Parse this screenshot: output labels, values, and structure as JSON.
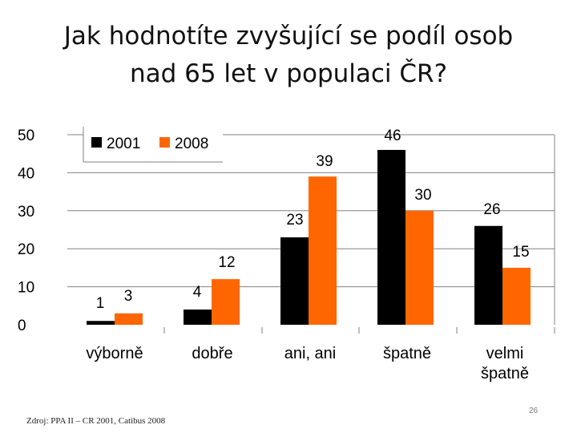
{
  "slide": {
    "title_line1": "Jak hodnotíte zvyšující se podíl osob",
    "title_line2": "nad 65 let v populaci ČR?",
    "source": "Zdroj: PPA II – CR 2001, Catibus 2008",
    "page_number": "26"
  },
  "colors": {
    "series_2001": "#000000",
    "series_2008": "#ff6600"
  },
  "chart_data": {
    "type": "bar",
    "categories": [
      "výborně",
      "dobře",
      "ani, ani",
      "špatně",
      "velmi\nšpatně"
    ],
    "series": [
      {
        "name": "2001",
        "values": [
          1,
          4,
          23,
          46,
          26
        ]
      },
      {
        "name": "2008",
        "values": [
          3,
          12,
          39,
          30,
          15
        ]
      }
    ],
    "ylim": [
      0,
      50
    ],
    "yticks": [
      "0",
      "10",
      "20",
      "30",
      "40",
      "50"
    ],
    "grid": true,
    "legend": "top-left",
    "data_labels": true
  }
}
